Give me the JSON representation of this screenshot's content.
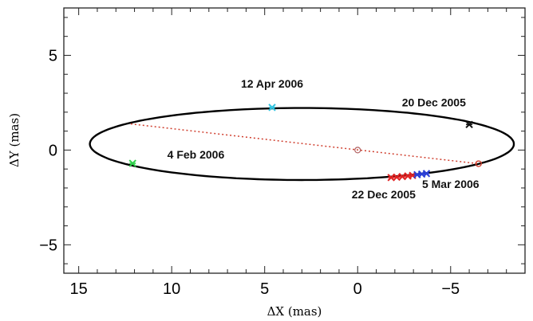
{
  "chart_data": {
    "type": "scatter",
    "title": "",
    "xlabel": "ΔX (mas)",
    "ylabel": "ΔY (mas)",
    "xlim": [
      15.8,
      -9.0
    ],
    "ylim": [
      -6.5,
      7.5
    ],
    "x_reversed": true,
    "x_ticks": [
      {
        "value": 15,
        "label": "15"
      },
      {
        "value": 10,
        "label": "10"
      },
      {
        "value": 5,
        "label": "5"
      },
      {
        "value": 0,
        "label": "0"
      },
      {
        "value": -5,
        "label": "−5"
      }
    ],
    "y_ticks": [
      {
        "value": 5,
        "label": "5"
      },
      {
        "value": 0,
        "label": "0"
      },
      {
        "value": -5,
        "label": "−5"
      }
    ],
    "orbit": {
      "center": [
        3.0,
        0.32
      ],
      "semi_axis_x": 11.4,
      "semi_axis_y": 1.9,
      "color": "#000000"
    },
    "line_of_nodes": {
      "start": [
        12.2,
        1.38
      ],
      "end": [
        -6.5,
        -0.72
      ],
      "color": "#d04030"
    },
    "center_marker": {
      "x": 0.0,
      "y": 0.0,
      "color": "#b06060"
    },
    "node_marker": {
      "x": -6.5,
      "y": -0.72,
      "color": "#d04030"
    },
    "points": [
      {
        "name": "20 Dec 2005",
        "x": -6.0,
        "y": 1.35,
        "color": "#111111"
      },
      {
        "name": "12 Apr 2006",
        "x": 4.6,
        "y": 2.25,
        "color": "#33c4e0"
      },
      {
        "name": "4 Feb 2006",
        "x": 12.1,
        "y": -0.7,
        "color": "#2ed14a"
      },
      {
        "name": "22 Dec 2005",
        "x": -1.8,
        "y": -1.45,
        "color": "#e02424"
      },
      {
        "name": "",
        "x": -2.1,
        "y": -1.43,
        "color": "#e02424"
      },
      {
        "name": "",
        "x": -2.4,
        "y": -1.4,
        "color": "#e02424"
      },
      {
        "name": "",
        "x": -2.7,
        "y": -1.37,
        "color": "#e02424"
      },
      {
        "name": "",
        "x": -2.95,
        "y": -1.34,
        "color": "#e02424"
      },
      {
        "name": "5 Mar 2006",
        "x": -3.2,
        "y": -1.3,
        "color": "#2b3fd6"
      },
      {
        "name": "",
        "x": -3.45,
        "y": -1.27,
        "color": "#2b3fd6"
      },
      {
        "name": "",
        "x": -3.7,
        "y": -1.24,
        "color": "#2b3fd6"
      }
    ],
    "annotations": [
      {
        "text": "12 Apr 2006",
        "x": 4.6,
        "y": 3.3
      },
      {
        "text": "20 Dec 2005",
        "x": -4.1,
        "y": 2.3
      },
      {
        "text": "4 Feb 2006",
        "x": 8.7,
        "y": -0.45
      },
      {
        "text": "22 Dec 2005",
        "x": -1.4,
        "y": -2.55
      },
      {
        "text": "5 Mar 2006",
        "x": -5.0,
        "y": -2.0
      }
    ],
    "grid": false,
    "legend": "none"
  }
}
